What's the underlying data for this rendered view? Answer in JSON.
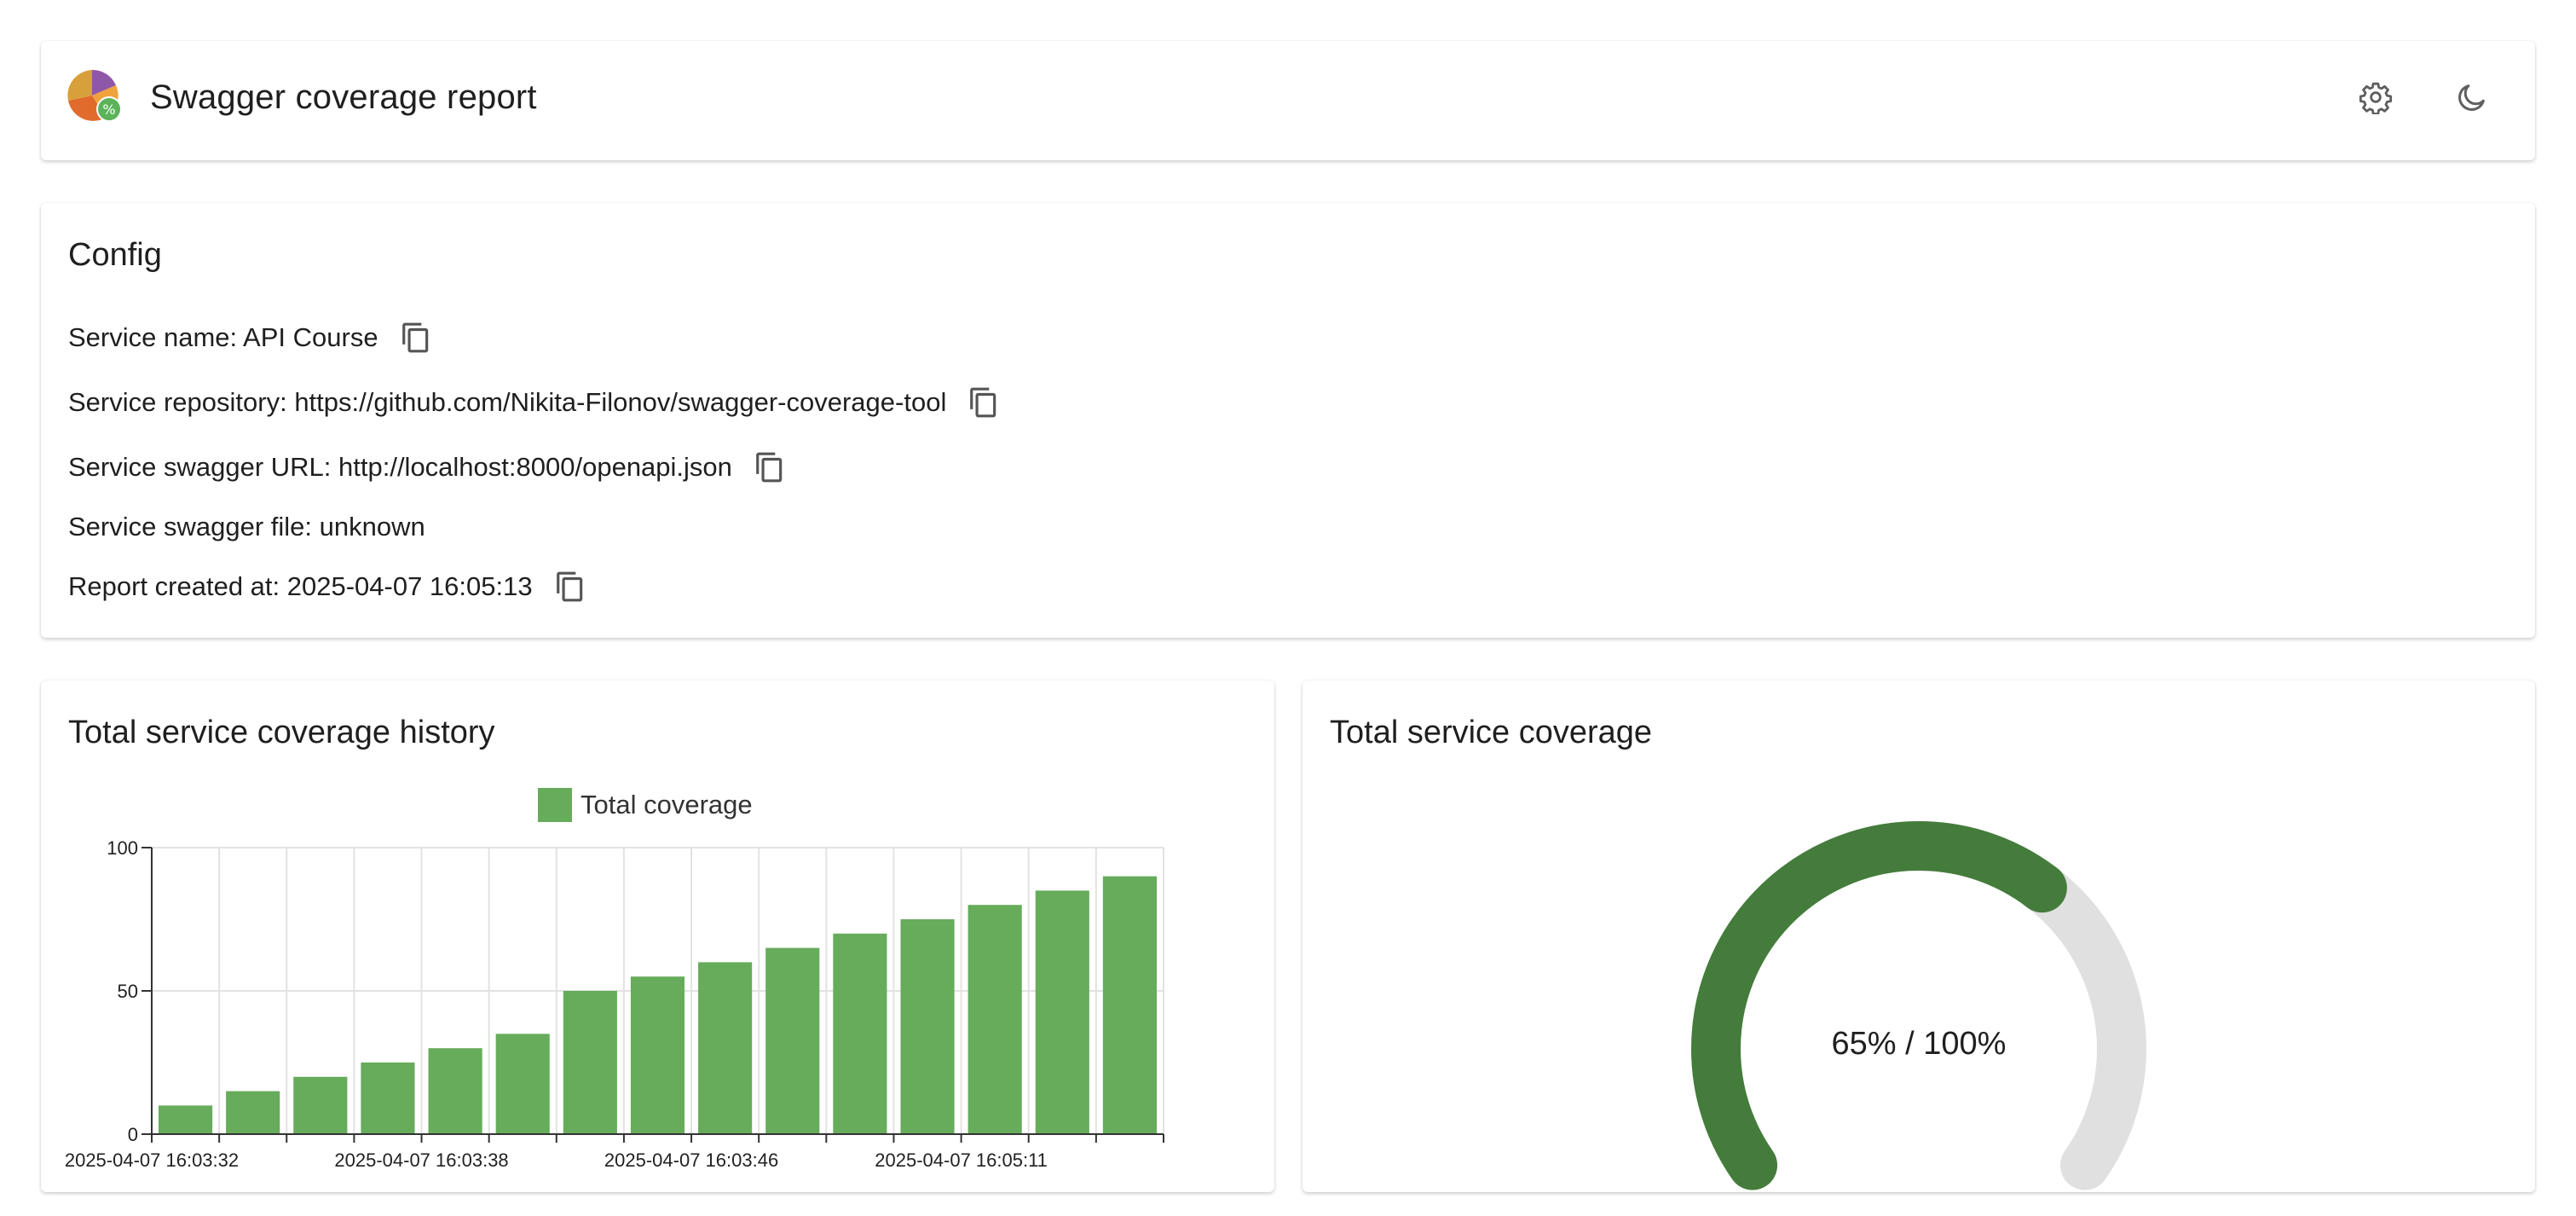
{
  "header": {
    "title": "Swagger coverage report",
    "settings_icon": "gear-icon",
    "theme_icon": "moon-icon"
  },
  "config": {
    "title": "Config",
    "rows": [
      {
        "label": "Service name: API Course",
        "copyable": true
      },
      {
        "label": "Service repository: https://github.com/Nikita-Filonov/swagger-coverage-tool",
        "copyable": true
      },
      {
        "label": "Service swagger URL: http://localhost:8000/openapi.json",
        "copyable": true
      },
      {
        "label": "Service swagger file: unknown",
        "copyable": false
      },
      {
        "label": "Report created at: 2025-04-07 16:05:13",
        "copyable": true
      }
    ]
  },
  "history": {
    "title": "Total service coverage history"
  },
  "gauge": {
    "title": "Total service coverage",
    "label": "65% / 100%",
    "value": 65,
    "max": 100,
    "color": "#447c3b",
    "track_color": "#e0e0e0"
  },
  "colors": {
    "bar": "#66ac5b",
    "grid": "#e2e2e2",
    "axis": "#333333"
  },
  "chart_data": {
    "type": "bar",
    "legend": "Total coverage",
    "categories": [
      "2025-04-07 16:03:32",
      "",
      "",
      "",
      "2025-04-07 16:03:38",
      "",
      "",
      "",
      "2025-04-07 16:03:46",
      "",
      "",
      "",
      "2025-04-07 16:05:11",
      "",
      ""
    ],
    "series": [
      {
        "name": "Total coverage",
        "values": [
          10,
          15,
          20,
          25,
          30,
          35,
          50,
          55,
          60,
          65,
          70,
          75,
          80,
          85,
          90
        ]
      }
    ],
    "ylim": [
      0,
      100
    ],
    "yticks": [
      0,
      50,
      100
    ],
    "grid": true,
    "legend_position": "top-center"
  }
}
